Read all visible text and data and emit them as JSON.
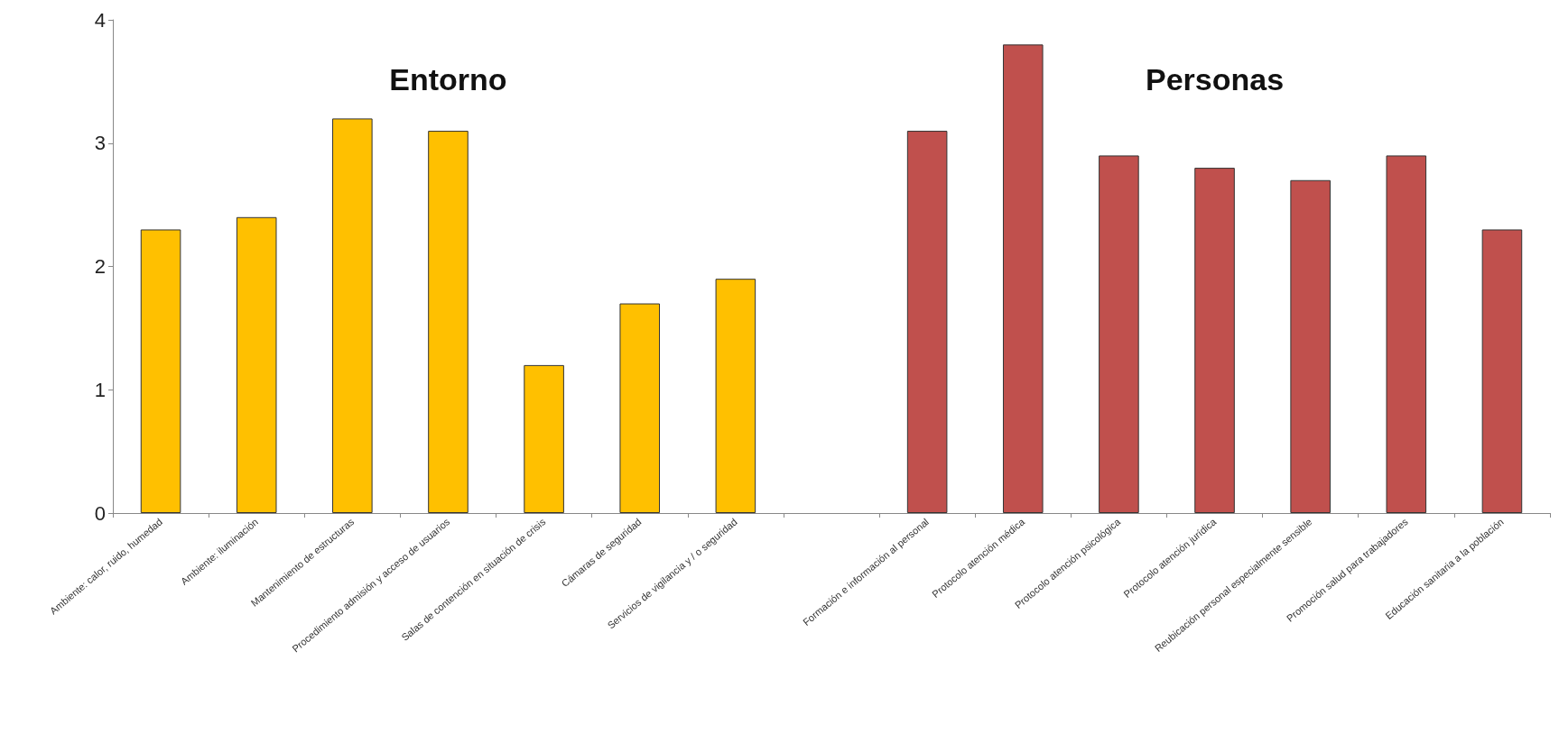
{
  "chart_data": {
    "type": "bar",
    "stacked": true,
    "categories": [
      "Ambiente: calor, ruido, humedad",
      "Ambiente: iluminación",
      "Mantenimiento de estructuras",
      "Procedimiento admisión y acceso de usuarios",
      "Salas de contención en situación de crisis",
      "Cámaras de seguridad",
      "Servicios de vigilancia y / o seguridad",
      null,
      "Formación e información al personal",
      "Protocolo atención médica",
      "Protocolo atención psicológica",
      "Protocolo atención jurídica",
      "Reubicación personal especialmente sensible",
      "Promoción salud para trabajadores",
      "Educación sanitaria a la población"
    ],
    "series": [
      {
        "name": "Entorno",
        "color": "#ffc000",
        "values": [
          2.3,
          2.4,
          3.2,
          3.1,
          1.2,
          1.7,
          1.9,
          null,
          null,
          null,
          null,
          null,
          null,
          null,
          null
        ]
      },
      {
        "name": "Personas",
        "color": "#c0504d",
        "values": [
          null,
          null,
          null,
          null,
          null,
          null,
          null,
          null,
          3.1,
          3.8,
          2.9,
          2.8,
          2.7,
          2.9,
          2.3
        ]
      }
    ],
    "ylim": [
      0,
      4
    ],
    "yticks": [
      0,
      1,
      2,
      3,
      4
    ],
    "grid": false,
    "legend": false
  }
}
